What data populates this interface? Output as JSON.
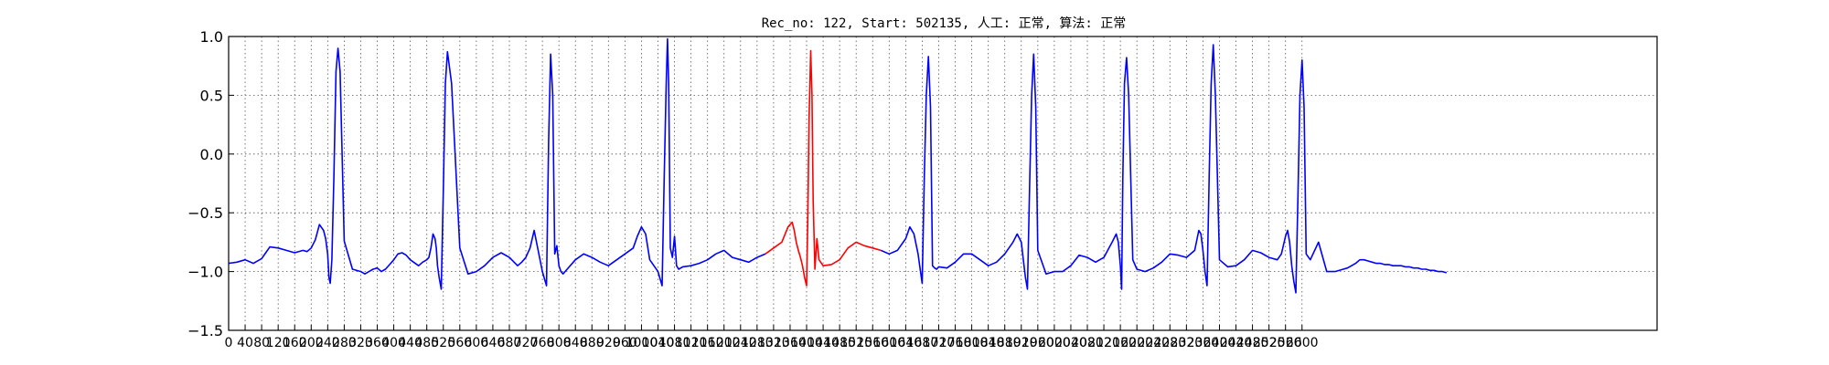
{
  "chart_data": {
    "type": "line",
    "title": "Rec_no: 122, Start: 502135, 人工: 正常, 算法: 正常",
    "xlabel": "",
    "ylabel": "",
    "xlim": [
      0,
      3460
    ],
    "ylim": [
      -1.5,
      1.0
    ],
    "y_ticks": [
      -1.5,
      -1.0,
      -0.5,
      0.0,
      0.5,
      1.0
    ],
    "y_tick_labels": [
      "−1.5",
      "−1.0",
      "−0.5",
      "0.0",
      "0.5",
      "1.0"
    ],
    "x_ticks": [
      0,
      40,
      80,
      120,
      160,
      200,
      240,
      280,
      320,
      360,
      400,
      440,
      480,
      520,
      560,
      600,
      640,
      680,
      720,
      760,
      800,
      840,
      880,
      920,
      960,
      1000,
      1040,
      1080,
      1120,
      1160,
      1200,
      1240,
      1280,
      1320,
      1360,
      1400,
      1440,
      1480,
      1520,
      1560,
      1600,
      1640,
      1680,
      1720,
      1760,
      1800,
      1840,
      1880,
      1920,
      1960,
      2000,
      2040,
      2080,
      2120,
      2160,
      2200,
      2240,
      2280,
      2320,
      2360,
      2400,
      2440,
      2480,
      2520,
      2560,
      2600
    ],
    "x_tick_labels": [
      "0",
      "40",
      "80",
      "120",
      "160",
      "200",
      "240",
      "280",
      "320",
      "360",
      "400",
      "440",
      "480",
      "520",
      "560",
      "600",
      "640",
      "680",
      "720",
      "760",
      "800",
      "840",
      "880",
      "920",
      "960",
      "1000",
      "1040",
      "1080",
      "1120",
      "1160",
      "1200",
      "1240",
      "1280",
      "1320",
      "1360",
      "1400",
      "1440",
      "1480",
      "1520",
      "1560",
      "1600",
      "1640",
      "1680",
      "1720",
      "1760",
      "1800",
      "1840",
      "1880",
      "1920",
      "1960",
      "2000",
      "2040",
      "2080",
      "2120",
      "2160",
      "2200",
      "2240",
      "2280",
      "2320",
      "2360",
      "2400",
      "2440",
      "2480",
      "2520",
      "2560",
      "2600"
    ],
    "grid": true,
    "legend": "none",
    "series": [
      {
        "color": "#0000ff",
        "x": [
          0,
          20,
          40,
          60,
          80,
          90,
          100,
          120,
          140,
          160,
          180,
          190,
          200,
          210,
          220,
          230,
          235,
          240,
          243,
          246,
          250,
          255,
          260,
          265,
          270,
          280,
          300,
          320,
          330,
          340,
          350,
          360,
          370,
          380,
          390,
          400,
          410,
          420,
          430,
          440,
          460,
          470,
          480,
          485,
          490,
          495,
          500,
          503,
          506,
          510,
          515,
          520,
          525,
          530,
          540,
          560,
          580,
          600,
          620,
          640,
          660,
          680,
          700,
          710,
          720,
          730,
          740,
          760,
          770,
          775,
          780,
          785,
          790,
          795,
          800,
          805,
          810,
          815,
          820,
          840,
          860,
          880,
          900,
          920,
          940,
          960,
          980,
          990,
          1000,
          1010,
          1020,
          1040,
          1050,
          1055,
          1060,
          1063,
          1066,
          1070,
          1075,
          1080,
          1085,
          1090,
          1100,
          1120,
          1140,
          1160,
          1180,
          1200,
          1220,
          1240,
          1260,
          1280,
          1300
        ],
        "y": [
          -0.93,
          -0.92,
          -0.9,
          -0.93,
          -0.89,
          -0.84,
          -0.79,
          -0.8,
          -0.82,
          -0.84,
          -0.82,
          -0.83,
          -0.8,
          -0.73,
          -0.6,
          -0.65,
          -0.72,
          -0.85,
          -1.05,
          -1.1,
          -0.9,
          -0.2,
          0.7,
          0.9,
          0.7,
          -0.74,
          -0.98,
          -1.0,
          -1.02,
          -1.0,
          -0.98,
          -0.97,
          -1.0,
          -0.98,
          -0.94,
          -0.9,
          -0.85,
          -0.84,
          -0.86,
          -0.9,
          -0.95,
          -0.92,
          -0.9,
          -0.88,
          -0.8,
          -0.68,
          -0.72,
          -0.8,
          -0.95,
          -1.05,
          -1.15,
          -0.3,
          0.6,
          0.87,
          0.6,
          -0.8,
          -1.02,
          -1.0,
          -0.95,
          -0.88,
          -0.84,
          -0.88,
          -0.95,
          -0.92,
          -0.88,
          -0.8,
          -0.65,
          -1.0,
          -1.12,
          0.1,
          0.85,
          0.5,
          -0.85,
          -0.78,
          -0.95,
          -1.0,
          -1.02,
          -1.0,
          -0.98,
          -0.9,
          -0.85,
          -0.88,
          -0.92,
          -0.95,
          -0.9,
          -0.85,
          -0.8,
          -0.7,
          -0.62,
          -0.68,
          -0.9,
          -1.0,
          -1.12,
          -0.2,
          0.6,
          0.98,
          0.6,
          -0.8,
          -0.88,
          -0.7,
          -0.95,
          -0.98,
          -0.96,
          -0.95,
          -0.93,
          -0.9,
          -0.85,
          -0.82,
          -0.88,
          -0.9,
          -0.92,
          -0.88,
          -0.85
        ]
      },
      {
        "color": "#ff0000",
        "x": [
          1300,
          1320,
          1340,
          1355,
          1365,
          1370,
          1375,
          1380,
          1385,
          1390,
          1395,
          1400,
          1403,
          1406,
          1410,
          1413,
          1416,
          1420,
          1425,
          1430,
          1440,
          1460,
          1480,
          1500,
          1520,
          1540,
          1560,
          1580
        ],
        "y": [
          -0.85,
          -0.8,
          -0.75,
          -0.62,
          -0.58,
          -0.65,
          -0.75,
          -0.82,
          -0.88,
          -0.95,
          -1.05,
          -1.12,
          -0.5,
          0.3,
          0.88,
          0.5,
          -0.4,
          -0.98,
          -0.72,
          -0.9,
          -0.95,
          -0.94,
          -0.9,
          -0.8,
          -0.75,
          -0.78,
          -0.8,
          -0.82
        ]
      },
      {
        "color": "#0000ff",
        "x": [
          1580,
          1600,
          1620,
          1640,
          1650,
          1660,
          1670,
          1675,
          1680,
          1685,
          1690,
          1695,
          1700,
          1705,
          1710,
          1715,
          1720,
          1740,
          1760,
          1780,
          1800,
          1820,
          1840,
          1860,
          1880,
          1900,
          1910,
          1920,
          1925,
          1930,
          1935,
          1940,
          1945,
          1950,
          1955,
          1960,
          1980,
          2000,
          2020,
          2040,
          2060,
          2080,
          2100,
          2120,
          2140,
          2150,
          2155,
          2160,
          2163,
          2166,
          2170,
          2175,
          2180,
          2190,
          2200,
          2220,
          2240,
          2260,
          2280,
          2300,
          2320,
          2340,
          2350,
          2355,
          2360,
          2365,
          2370,
          2375,
          2380,
          2385,
          2390,
          2400,
          2420,
          2440,
          2460,
          2480,
          2500,
          2520,
          2540,
          2550,
          2560,
          2565,
          2570,
          2575,
          2580,
          2585,
          2590,
          2595,
          2600,
          2605,
          2610,
          2620,
          2640,
          2660,
          2680,
          2700,
          2710,
          2720,
          2730,
          2740,
          2750,
          2760,
          2770,
          2780,
          2790,
          2800,
          2810,
          2820,
          2830,
          2840,
          2850,
          2860,
          2870,
          2880,
          2890,
          2900,
          2910,
          2920,
          2930,
          2940,
          2950
        ],
        "y": [
          -0.82,
          -0.85,
          -0.82,
          -0.72,
          -0.62,
          -0.68,
          -0.85,
          -0.98,
          -1.1,
          -0.2,
          0.5,
          0.83,
          0.4,
          -0.95,
          -0.97,
          -0.98,
          -0.96,
          -0.97,
          -0.92,
          -0.85,
          -0.85,
          -0.9,
          -0.95,
          -0.92,
          -0.85,
          -0.75,
          -0.68,
          -0.75,
          -0.9,
          -1.05,
          -1.15,
          -0.3,
          0.5,
          0.85,
          0.4,
          -0.82,
          -1.02,
          -1.0,
          -1.0,
          -0.95,
          -0.86,
          -0.88,
          -0.92,
          -0.88,
          -0.75,
          -0.68,
          -0.75,
          -0.95,
          -1.15,
          -0.2,
          0.6,
          0.82,
          0.5,
          -0.9,
          -0.98,
          -1.0,
          -0.97,
          -0.92,
          -0.85,
          -0.86,
          -0.88,
          -0.82,
          -0.65,
          -0.68,
          -0.82,
          -1.0,
          -1.12,
          -0.2,
          0.6,
          0.93,
          0.5,
          -0.9,
          -0.96,
          -0.95,
          -0.9,
          -0.82,
          -0.84,
          -0.88,
          -0.9,
          -0.85,
          -0.7,
          -0.65,
          -0.75,
          -0.95,
          -1.08,
          -1.18,
          -0.4,
          0.5,
          0.8,
          0.4,
          -0.85,
          -0.9,
          -0.75,
          -1.0,
          -1.0,
          -0.98,
          -0.97,
          -0.95,
          -0.93,
          -0.9,
          -0.9,
          -0.91,
          -0.92,
          -0.93,
          -0.93,
          -0.94,
          -0.94,
          -0.95,
          -0.95,
          -0.95,
          -0.96,
          -0.96,
          -0.97,
          -0.97,
          -0.98,
          -0.98,
          -0.99,
          -0.99,
          -1.0,
          -1.0,
          -1.01
        ]
      }
    ]
  }
}
